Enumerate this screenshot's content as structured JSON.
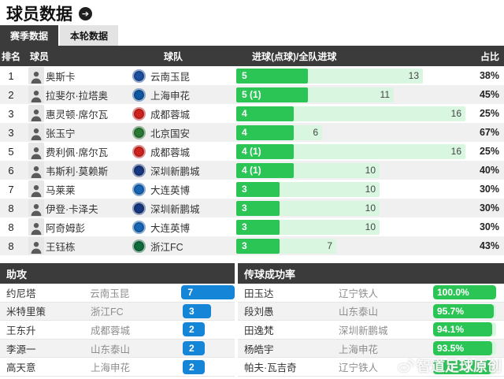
{
  "page": {
    "title": "球员数据"
  },
  "tabs": [
    {
      "label": "赛季数据",
      "active": true
    },
    {
      "label": "本轮数据",
      "active": false
    }
  ],
  "goals_table": {
    "columns": {
      "rank": "排名",
      "player": "球员",
      "team": "球队",
      "goals": "进球(点球)/全队进球",
      "ratio": "占比"
    },
    "rows": [
      {
        "rank": "1",
        "player": "奥斯卡",
        "team": "云南玉昆",
        "goals_label": "5",
        "goals": 5,
        "team_goals": 13,
        "ratio": "38%"
      },
      {
        "rank": "2",
        "player": "拉斐尔·拉塔奥",
        "team": "上海申花",
        "goals_label": "5 (1)",
        "goals": 5,
        "team_goals": 11,
        "ratio": "45%"
      },
      {
        "rank": "3",
        "player": "惠灵顿·席尔瓦",
        "team": "成都蓉城",
        "goals_label": "4",
        "goals": 4,
        "team_goals": 16,
        "ratio": "25%"
      },
      {
        "rank": "3",
        "player": "张玉宁",
        "team": "北京国安",
        "goals_label": "4",
        "goals": 4,
        "team_goals": 6,
        "ratio": "67%"
      },
      {
        "rank": "5",
        "player": "费利佩·席尔瓦",
        "team": "成都蓉城",
        "goals_label": "4 (1)",
        "goals": 4,
        "team_goals": 16,
        "ratio": "25%"
      },
      {
        "rank": "6",
        "player": "韦斯利·莫赖斯",
        "team": "深圳新鹏城",
        "goals_label": "4 (1)",
        "goals": 4,
        "team_goals": 10,
        "ratio": "40%"
      },
      {
        "rank": "7",
        "player": "马莱莱",
        "team": "大连英博",
        "goals_label": "3",
        "goals": 3,
        "team_goals": 10,
        "ratio": "30%"
      },
      {
        "rank": "8",
        "player": "伊登·卡泽夫",
        "team": "深圳新鹏城",
        "goals_label": "3",
        "goals": 3,
        "team_goals": 10,
        "ratio": "30%"
      },
      {
        "rank": "8",
        "player": "阿奇姆彭",
        "team": "大连英博",
        "goals_label": "3",
        "goals": 3,
        "team_goals": 10,
        "ratio": "30%"
      },
      {
        "rank": "8",
        "player": "王钰栋",
        "team": "浙江FC",
        "goals_label": "3",
        "goals": 3,
        "team_goals": 7,
        "ratio": "43%"
      }
    ]
  },
  "assists": {
    "title": "助攻",
    "rows": [
      {
        "player": "约尼塔",
        "team": "云南玉昆",
        "value": 7
      },
      {
        "player": "米特里策",
        "team": "浙江FC",
        "value": 3
      },
      {
        "player": "王东升",
        "team": "成都蓉城",
        "value": 2
      },
      {
        "player": "李源一",
        "team": "山东泰山",
        "value": 2
      },
      {
        "player": "高天意",
        "team": "上海申花",
        "value": 2
      }
    ]
  },
  "pass_rate": {
    "title": "传球成功率",
    "rows": [
      {
        "player": "田玉达",
        "team": "辽宁铁人",
        "value": "100.0%",
        "pct": 100
      },
      {
        "player": "段刘愚",
        "team": "山东泰山",
        "value": "95.7%",
        "pct": 95.7
      },
      {
        "player": "田逸梵",
        "team": "深圳新鹏城",
        "value": "94.1%",
        "pct": 94.1
      },
      {
        "player": "杨皓宇",
        "team": "上海申花",
        "value": "93.5%",
        "pct": 93.5
      },
      {
        "player": "帕夫·瓦吉奇",
        "team": "辽宁铁人",
        "value": "",
        "pct": 93
      }
    ]
  },
  "watermark": {
    "text": "智道足球原创",
    "icon": "weibo-icon"
  },
  "colors": {
    "accent_green": "#2bc556",
    "track_green": "#d9f6e1",
    "accent_blue": "#1585d8",
    "header_dark": "#3b3b3b"
  },
  "team_colors": {
    "云南玉昆": "#1e4fa0",
    "上海申花": "#0f57a3",
    "成都蓉城": "#d0231f",
    "北京国安": "#2a7a35",
    "深圳新鹏城": "#16387f",
    "大连英博": "#1766b5",
    "浙江FC": "#0f6b3c",
    "山东泰山": "#e06a10",
    "辽宁铁人": "#c22a2a"
  }
}
